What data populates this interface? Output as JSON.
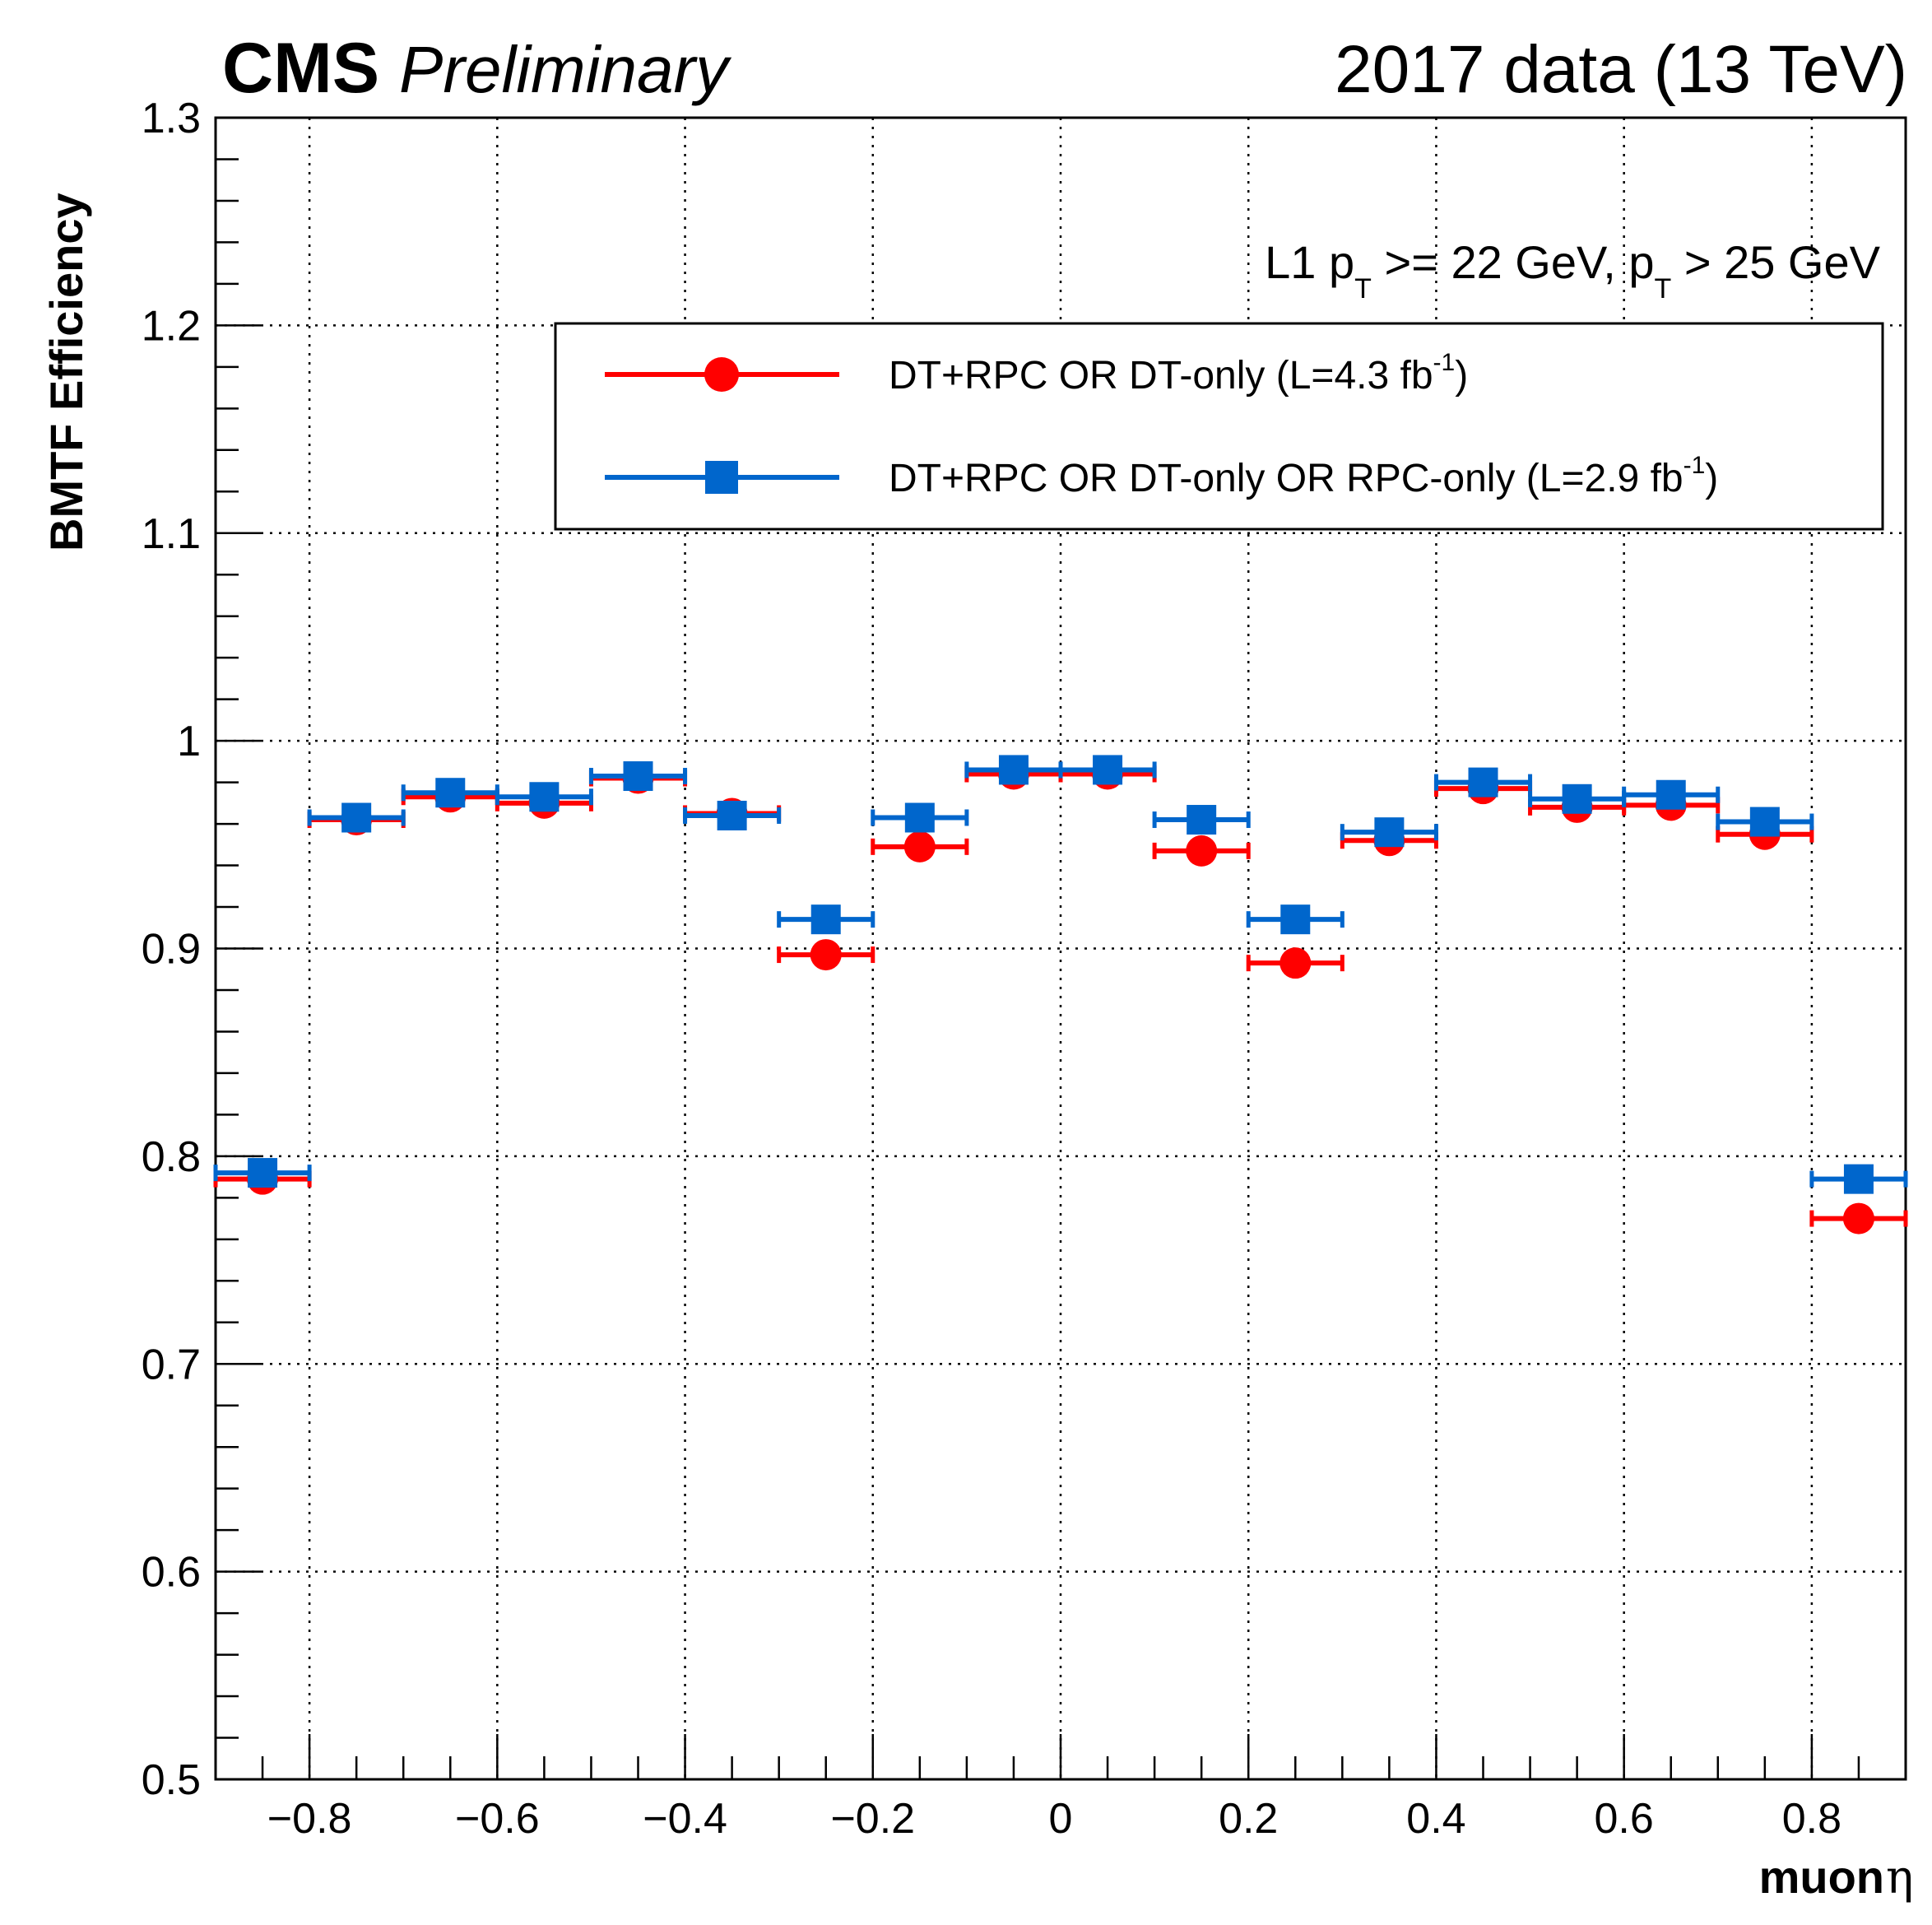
{
  "chart_data": {
    "type": "scatter",
    "title_left_bold": "CMS",
    "title_left_italic": "Preliminary",
    "title_right": "2017 data (13 TeV)",
    "xlabel_text": "muon ",
    "xlabel_symbol": "η",
    "ylabel": "BMTF Efficiency",
    "xlim": [
      -0.9,
      0.9
    ],
    "ylim": [
      0.5,
      1.3
    ],
    "grid": true,
    "xticks": [
      -0.8,
      -0.6,
      -0.4,
      -0.2,
      0,
      0.2,
      0.4,
      0.6,
      0.8
    ],
    "xtick_labels": [
      "−0.8",
      "−0.6",
      "−0.4",
      "−0.2",
      "0",
      "0.2",
      "0.4",
      "0.6",
      "0.8"
    ],
    "yticks": [
      0.5,
      0.6,
      0.7,
      0.8,
      0.9,
      1.0,
      1.1,
      1.2,
      1.3
    ],
    "ytick_labels": [
      "0.5",
      "0.6",
      "0.7",
      "0.8",
      "0.9",
      "1",
      "1.1",
      "1.2",
      "1.3"
    ],
    "annotation": {
      "part1": "L1 p",
      "sub1": "T",
      "part2": " >= 22 GeV, p",
      "sub2": "T",
      "part3": " > 25 GeV"
    },
    "x_half_width": 0.05,
    "x": [
      -0.85,
      -0.75,
      -0.65,
      -0.55,
      -0.45,
      -0.35,
      -0.25,
      -0.15,
      -0.05,
      0.05,
      0.15,
      0.25,
      0.35,
      0.45,
      0.55,
      0.65,
      0.75,
      0.85
    ],
    "series": [
      {
        "name": "DT+RPC OR DT-only (L=4.3 fb",
        "name_sup": "-1",
        "name_end": ")",
        "marker": "circle",
        "color": "#ff0000",
        "values": [
          0.789,
          0.962,
          0.973,
          0.97,
          0.982,
          0.965,
          0.897,
          0.949,
          0.984,
          0.984,
          0.947,
          0.893,
          0.952,
          0.977,
          0.968,
          0.969,
          0.955,
          0.77
        ]
      },
      {
        "name": "DT+RPC OR DT-only OR RPC-only (L=2.9 fb",
        "name_sup": "-1",
        "name_end": ")",
        "marker": "square",
        "color": "#0066cc",
        "values": [
          0.792,
          0.963,
          0.975,
          0.973,
          0.983,
          0.964,
          0.914,
          0.963,
          0.986,
          0.986,
          0.962,
          0.914,
          0.956,
          0.98,
          0.972,
          0.974,
          0.961,
          0.789
        ]
      }
    ]
  }
}
